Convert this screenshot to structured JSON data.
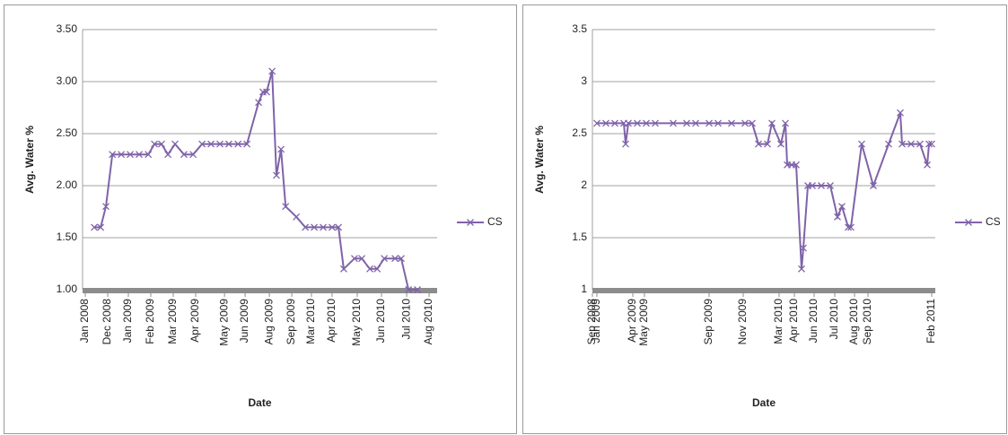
{
  "chart_data": [
    {
      "type": "line",
      "x_label": "Date",
      "y_label": "Avg. Water %",
      "x": [
        0.39,
        0.67,
        0.9,
        1.18,
        1.57,
        1.96,
        2.35,
        2.75,
        3.02,
        3.33,
        3.61,
        3.92,
        4.31,
        4.71,
        5.1,
        5.49,
        5.88,
        6.27,
        6.67,
        7.06,
        7.57,
        7.76,
        7.92,
        8.16,
        8.35,
        8.55,
        8.75,
        9.22,
        9.61,
        10.0,
        10.39,
        10.78,
        11.06,
        11.29,
        11.76,
        12.08,
        12.43,
        12.75,
        13.06,
        13.53,
        13.8,
        14.12,
        14.51
      ],
      "series": [
        {
          "name": "CS",
          "color": "#7f63a8",
          "values": [
            1.6,
            1.6,
            1.8,
            2.3,
            2.3,
            2.3,
            2.3,
            2.3,
            2.4,
            2.4,
            2.3,
            2.4,
            2.3,
            2.3,
            2.4,
            2.4,
            2.4,
            2.4,
            2.4,
            2.4,
            2.8,
            2.9,
            2.9,
            3.1,
            2.1,
            2.35,
            1.8,
            1.7,
            1.6,
            1.6,
            1.6,
            1.6,
            1.6,
            1.2,
            1.3,
            1.3,
            1.2,
            1.2,
            1.3,
            1.3,
            1.3,
            1.0,
            1.0
          ]
        }
      ],
      "xlim": [
        -0.12,
        15.37
      ],
      "xticks": [
        {
          "value": 0,
          "label": "Jan 2008"
        },
        {
          "value": 0.98,
          "label": "Dec 2008"
        },
        {
          "value": 1.88,
          "label": "Jan 2009"
        },
        {
          "value": 2.86,
          "label": "Feb 2009"
        },
        {
          "value": 3.84,
          "label": "Mar 2009"
        },
        {
          "value": 4.82,
          "label": "Apr 2009"
        },
        {
          "value": 6.08,
          "label": "May 2009"
        },
        {
          "value": 6.98,
          "label": "Jun 2009"
        },
        {
          "value": 8.04,
          "label": "Aug 2009"
        },
        {
          "value": 9.02,
          "label": "Sep 2009"
        },
        {
          "value": 9.88,
          "label": "Mar 2010"
        },
        {
          "value": 10.78,
          "label": "Apr 2010"
        },
        {
          "value": 11.88,
          "label": "May 2010"
        },
        {
          "value": 12.94,
          "label": "Jun 2010"
        },
        {
          "value": 14.04,
          "label": "Jul 2010"
        },
        {
          "value": 15.02,
          "label": "Aug 2010"
        }
      ],
      "ylim": [
        1,
        3.5
      ],
      "yticks": [
        {
          "value": 1,
          "label": "1.00"
        },
        {
          "value": 1.5,
          "label": "1.50"
        },
        {
          "value": 2,
          "label": "2.00"
        },
        {
          "value": 2.5,
          "label": "2.50"
        },
        {
          "value": 3,
          "label": "3.00"
        },
        {
          "value": 3.5,
          "label": "3.50"
        }
      ],
      "grid": true,
      "legend": "right"
    },
    {
      "type": "line",
      "x_label": "Date",
      "y_label": "Avg. Water %",
      "x": [
        0.5,
        1.5,
        2.5,
        3.5,
        3.7,
        4.0,
        5.0,
        6.0,
        7.0,
        9.0,
        10.5,
        11.5,
        13.0,
        14.0,
        15.5,
        17.0,
        17.8,
        18.5,
        19.5,
        20.0,
        21.0,
        21.5,
        21.7,
        22.2,
        22.7,
        23.3,
        23.5,
        24.0,
        24.5,
        25.5,
        26.5,
        27.3,
        27.8,
        28.5,
        28.8,
        30.0,
        31.3,
        33.0,
        34.3,
        34.5,
        35.5,
        36.5,
        37.3,
        37.5,
        37.8
      ],
      "series": [
        {
          "name": "CS",
          "color": "#7f63a8",
          "values": [
            2.6,
            2.6,
            2.6,
            2.6,
            2.4,
            2.6,
            2.6,
            2.6,
            2.6,
            2.6,
            2.6,
            2.6,
            2.6,
            2.6,
            2.6,
            2.6,
            2.6,
            2.4,
            2.4,
            2.6,
            2.4,
            2.6,
            2.2,
            2.2,
            2.2,
            1.2,
            1.4,
            2.0,
            2.0,
            2.0,
            2.0,
            1.7,
            1.8,
            1.6,
            1.6,
            2.4,
            2.0,
            2.4,
            2.7,
            2.4,
            2.4,
            2.4,
            2.2,
            2.4,
            2.4
          ]
        }
      ],
      "xlim": [
        0,
        38.2
      ],
      "xticks": [
        {
          "value": 0,
          "label": "Sep 2008"
        },
        {
          "value": 0.5,
          "label": "Jan 2009"
        },
        {
          "value": 4.5,
          "label": "Apr 2009"
        },
        {
          "value": 5.8,
          "label": "May 2009"
        },
        {
          "value": 13,
          "label": "Sep 2009"
        },
        {
          "value": 16.8,
          "label": "Nov 2009"
        },
        {
          "value": 20.8,
          "label": "Mar 2010"
        },
        {
          "value": 22.5,
          "label": "Apr 2010"
        },
        {
          "value": 24.7,
          "label": "Jun 2010"
        },
        {
          "value": 27,
          "label": "Jul 2010"
        },
        {
          "value": 29.2,
          "label": "Aug 2010"
        },
        {
          "value": 30.7,
          "label": "Sep 2010"
        },
        {
          "value": 37.8,
          "label": "Feb 2011"
        }
      ],
      "ylim": [
        1,
        3.5
      ],
      "yticks": [
        1,
        1.5,
        2,
        2.5,
        3,
        3.5
      ],
      "grid": true,
      "legend": "right"
    }
  ]
}
